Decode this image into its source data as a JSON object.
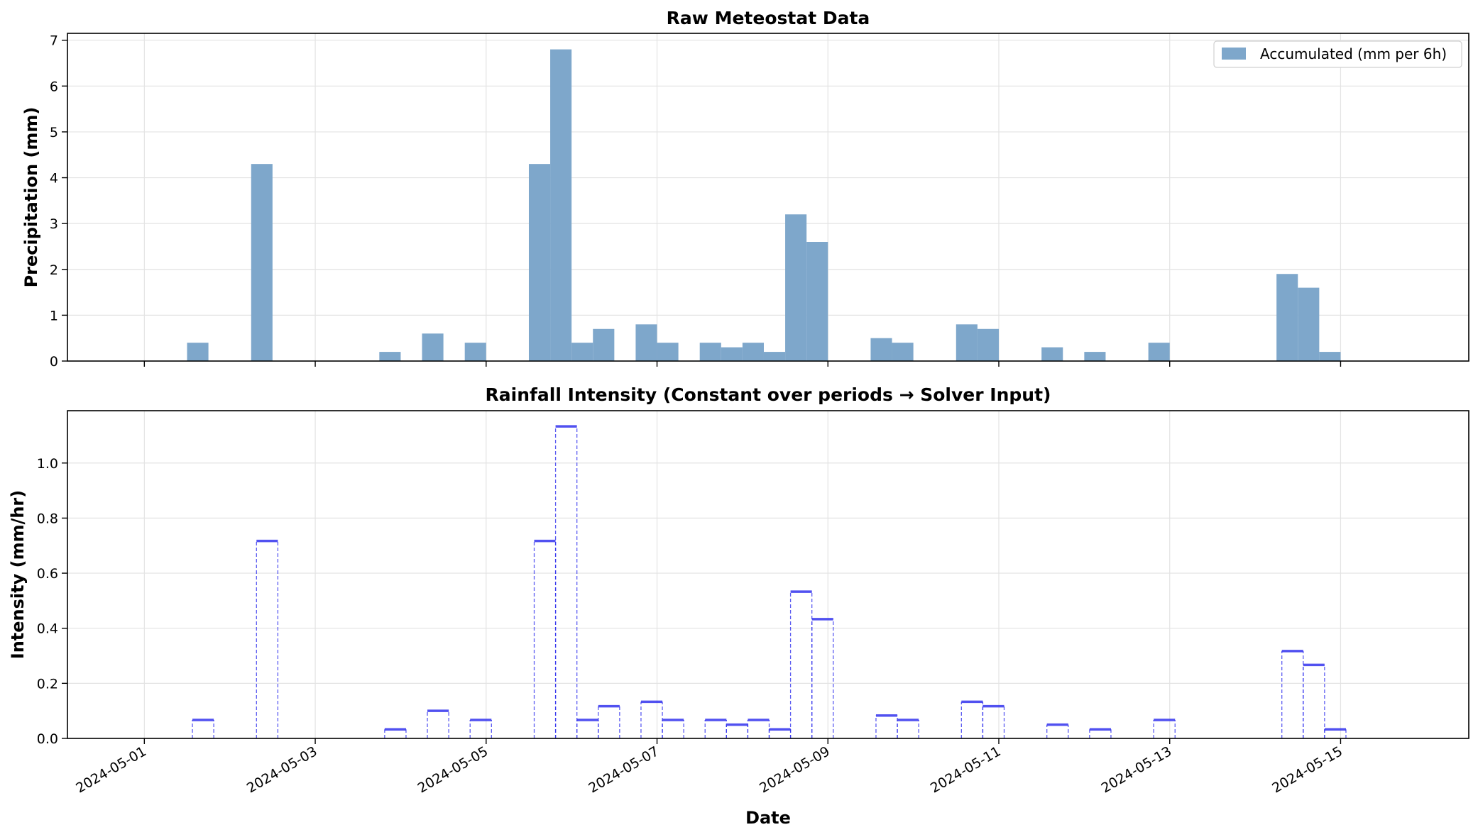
{
  "chart_data": [
    {
      "type": "bar",
      "title": "Raw Meteostat Data",
      "xlabel": "",
      "ylabel": "Precipitation (mm)",
      "ylim": [
        0,
        7.15
      ],
      "yticks": [
        0,
        1,
        2,
        3,
        4,
        5,
        6,
        7
      ],
      "grid": true,
      "legend_position": "top-right",
      "legend": [
        "Accumulated (mm per 6h)"
      ],
      "bar_color": "#7ea7cb",
      "series": [
        {
          "name": "Accumulated (mm per 6h)",
          "points": [
            [
              "2024-05-01T12:00",
              0.4
            ],
            [
              "2024-05-02T06:00",
              4.3
            ],
            [
              "2024-05-03T18:00",
              0.2
            ],
            [
              "2024-05-04T06:00",
              0.6
            ],
            [
              "2024-05-04T18:00",
              0.4
            ],
            [
              "2024-05-05T12:00",
              4.3
            ],
            [
              "2024-05-05T18:00",
              6.8
            ],
            [
              "2024-05-06T00:00",
              0.4
            ],
            [
              "2024-05-06T06:00",
              0.7
            ],
            [
              "2024-05-06T18:00",
              0.8
            ],
            [
              "2024-05-07T00:00",
              0.4
            ],
            [
              "2024-05-07T12:00",
              0.4
            ],
            [
              "2024-05-07T18:00",
              0.3
            ],
            [
              "2024-05-08T00:00",
              0.4
            ],
            [
              "2024-05-08T06:00",
              0.2
            ],
            [
              "2024-05-08T12:00",
              3.2
            ],
            [
              "2024-05-08T18:00",
              2.6
            ],
            [
              "2024-05-09T12:00",
              0.5
            ],
            [
              "2024-05-09T18:00",
              0.4
            ],
            [
              "2024-05-10T12:00",
              0.8
            ],
            [
              "2024-05-10T18:00",
              0.7
            ],
            [
              "2024-05-11T12:00",
              0.3
            ],
            [
              "2024-05-12T00:00",
              0.2
            ],
            [
              "2024-05-12T18:00",
              0.4
            ],
            [
              "2024-05-14T06:00",
              1.9
            ],
            [
              "2024-05-14T12:00",
              1.6
            ],
            [
              "2024-05-14T18:00",
              0.2
            ]
          ]
        }
      ]
    },
    {
      "type": "step",
      "title": "Rainfall Intensity (Constant over periods → Solver Input)",
      "xlabel": "Date",
      "ylabel": "Intensity (mm/hr)",
      "ylim": [
        0,
        1.19
      ],
      "yticks": [
        "0.0",
        "0.2",
        "0.4",
        "0.6",
        "0.8",
        "1.0"
      ],
      "grid": true,
      "line_color": "#3333ee",
      "x_ticks": [
        "2024-05-01",
        "2024-05-03",
        "2024-05-05",
        "2024-05-07",
        "2024-05-09",
        "2024-05-11",
        "2024-05-13",
        "2024-05-15"
      ],
      "series": [
        {
          "name": "",
          "points": [
            [
              "2024-05-01T12:00",
              0.067
            ],
            [
              "2024-05-02T06:00",
              0.717
            ],
            [
              "2024-05-03T18:00",
              0.033
            ],
            [
              "2024-05-04T06:00",
              0.1
            ],
            [
              "2024-05-04T18:00",
              0.067
            ],
            [
              "2024-05-05T12:00",
              0.717
            ],
            [
              "2024-05-05T18:00",
              1.133
            ],
            [
              "2024-05-06T00:00",
              0.067
            ],
            [
              "2024-05-06T06:00",
              0.117
            ],
            [
              "2024-05-06T18:00",
              0.133
            ],
            [
              "2024-05-07T00:00",
              0.067
            ],
            [
              "2024-05-07T12:00",
              0.067
            ],
            [
              "2024-05-07T18:00",
              0.05
            ],
            [
              "2024-05-08T00:00",
              0.067
            ],
            [
              "2024-05-08T06:00",
              0.033
            ],
            [
              "2024-05-08T12:00",
              0.533
            ],
            [
              "2024-05-08T18:00",
              0.433
            ],
            [
              "2024-05-09T12:00",
              0.083
            ],
            [
              "2024-05-09T18:00",
              0.067
            ],
            [
              "2024-05-10T12:00",
              0.133
            ],
            [
              "2024-05-10T18:00",
              0.117
            ],
            [
              "2024-05-11T12:00",
              0.05
            ],
            [
              "2024-05-12T00:00",
              0.033
            ],
            [
              "2024-05-12T18:00",
              0.067
            ],
            [
              "2024-05-14T06:00",
              0.317
            ],
            [
              "2024-05-14T12:00",
              0.267
            ],
            [
              "2024-05-14T18:00",
              0.033
            ]
          ]
        }
      ]
    }
  ]
}
